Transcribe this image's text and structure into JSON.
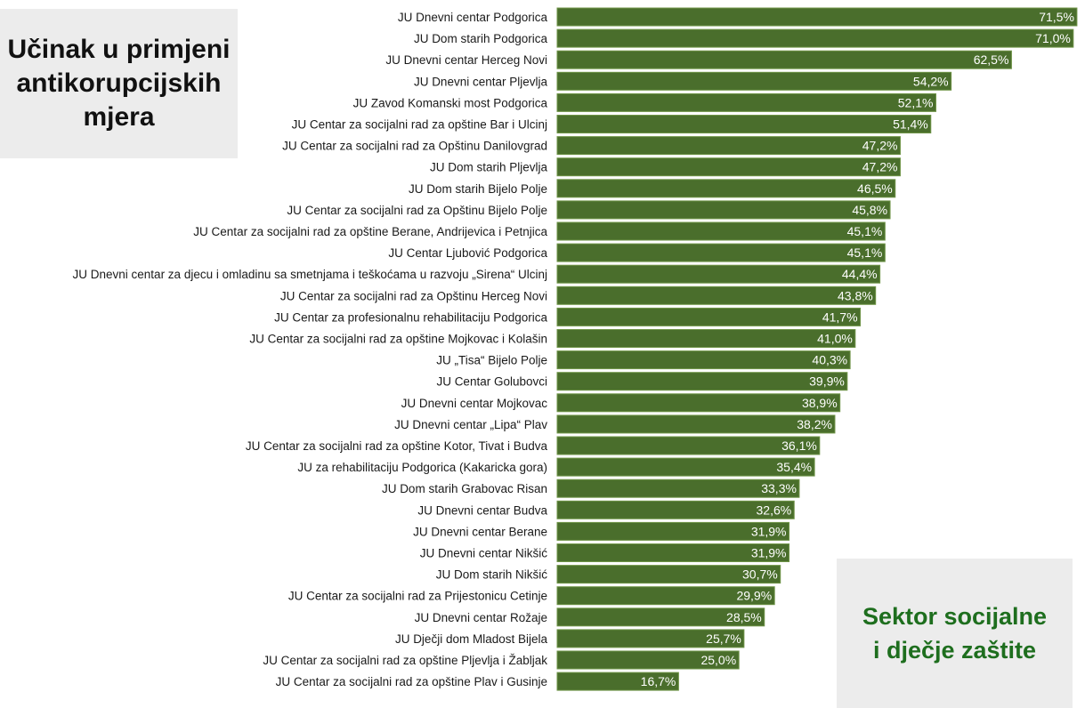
{
  "title": {
    "line1": "Učinak u primjeni",
    "line2": "antikorupcijskih",
    "line3": "mjera"
  },
  "sector": {
    "line1": "Sektor socijalne",
    "line2": "i dječje zaštite"
  },
  "colors": {
    "bar": "#4a6e2c",
    "sector_text": "#1e6e1e",
    "box_background": "#ececec"
  },
  "chart_data": {
    "type": "bar",
    "orientation": "horizontal",
    "categories": [
      "JU Dnevni centar Podgorica",
      "JU Dom starih Podgorica",
      "JU Dnevni centar Herceg Novi",
      "JU Dnevni centar Pljevlja",
      "JU Zavod Komanski most Podgorica",
      "JU Centar za socijalni rad za opštine Bar i Ulcinj",
      "JU Centar za socijalni rad za Opštinu Danilovgrad",
      "JU Dom starih Pljevlja",
      "JU Dom starih Bijelo Polje",
      "JU Centar za socijalni rad za Opštinu Bijelo Polje",
      "JU Centar za socijalni rad za opštine Berane, Andrijevica i Petnjica",
      "JU Centar Ljubović Podgorica",
      "JU Dnevni centar za djecu i omladinu sa smetnjama i teškoćama u razvoju „Sirena“ Ulcinj",
      "JU Centar za socijalni rad za Opštinu Herceg Novi",
      "JU Centar za profesionalnu rehabilitaciju Podgorica",
      "JU Centar za socijalni rad za opštine Mojkovac i Kolašin",
      "JU „Tisa“ Bijelo Polje",
      "JU Centar Golubovci",
      "JU Dnevni centar Mojkovac",
      "JU Dnevni centar „Lipa“ Plav",
      "JU Centar za socijalni rad za opštine Kotor, Tivat i Budva",
      "JU za rehabilitaciju Podgorica (Kakaricka gora)",
      "JU Dom starih Grabovac Risan",
      "JU Dnevni centar Budva",
      "JU Dnevni centar Berane",
      "JU Dnevni centar Nikšić",
      "JU Dom starih Nikšić",
      "JU Centar za socijalni rad za Prijestonicu Cetinje",
      "JU Dnevni centar Rožaje",
      "JU Dječji dom Mladost Bijela",
      "JU Centar za socijalni rad za opštine Pljevlja i Žabljak",
      "JU Centar za socijalni rad za opštine Plav i Gusinje"
    ],
    "values": [
      71.5,
      71.0,
      62.5,
      54.2,
      52.1,
      51.4,
      47.2,
      47.2,
      46.5,
      45.8,
      45.1,
      45.1,
      44.4,
      43.8,
      41.7,
      41.0,
      40.3,
      39.9,
      38.9,
      38.2,
      36.1,
      35.4,
      33.3,
      32.6,
      31.9,
      31.9,
      30.7,
      29.9,
      28.5,
      25.7,
      25.0,
      16.7
    ],
    "value_labels": [
      "71,5%",
      "71,0%",
      "62,5%",
      "54,2%",
      "52,1%",
      "51,4%",
      "47,2%",
      "47,2%",
      "46,5%",
      "45,8%",
      "45,1%",
      "45,1%",
      "44,4%",
      "43,8%",
      "41,7%",
      "41,0%",
      "40,3%",
      "39,9%",
      "38,9%",
      "38,2%",
      "36,1%",
      "35,4%",
      "33,3%",
      "32,6%",
      "31,9%",
      "31,9%",
      "30,7%",
      "29,9%",
      "28,5%",
      "25,7%",
      "25,0%",
      "16,7%"
    ],
    "unit": "%",
    "grid": false,
    "legend": "none",
    "xlim": [
      0,
      72
    ]
  }
}
